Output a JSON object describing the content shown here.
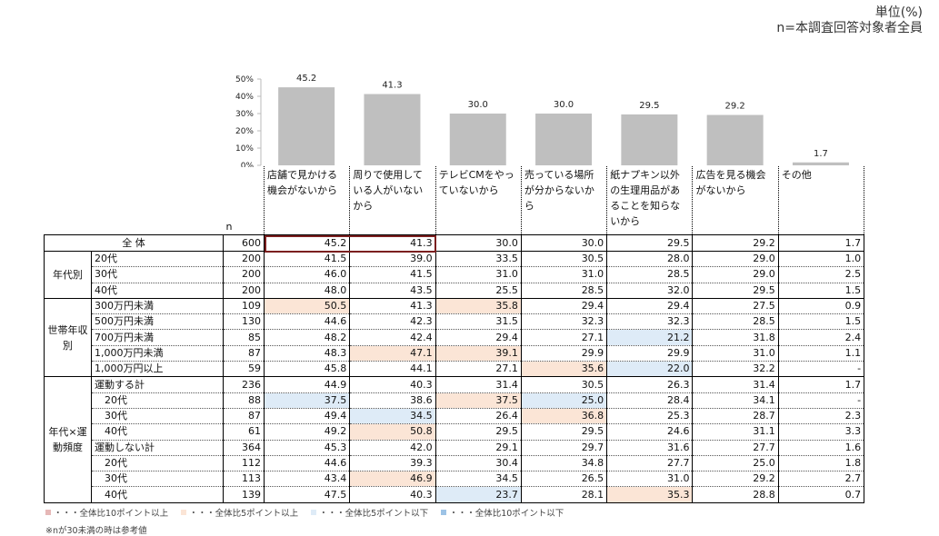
{
  "unit": "単位(%)",
  "n_note": "n=本調査回答対象者全員",
  "chart_data": {
    "type": "bar",
    "categories": [
      "店舗で見かける機会がないから",
      "周りで使用している人がいないから",
      "テレビCMをやっていないから",
      "売っている場所が分からないから",
      "紙ナプキン以外の生理用品があることを知らないから",
      "広告を見る機会がないから",
      "その他"
    ],
    "values": [
      45.2,
      41.3,
      30.0,
      30.0,
      29.5,
      29.2,
      1.7
    ],
    "value_labels": [
      "45.2",
      "41.3",
      "30.0",
      "30.0",
      "29.5",
      "29.2",
      "1.7"
    ],
    "color": "#bfbfbf",
    "ylim": [
      0,
      50
    ],
    "yticks": [
      {
        "value": 0,
        "label": "0%"
      },
      {
        "value": 10,
        "label": "10%"
      },
      {
        "value": 20,
        "label": "20%"
      },
      {
        "value": 30,
        "label": "30%"
      },
      {
        "value": 40,
        "label": "40%"
      },
      {
        "value": 50,
        "label": "50%"
      }
    ]
  },
  "table": {
    "n_header": "n",
    "total": {
      "label": "全 体",
      "n": "600",
      "values": [
        "45.2",
        "41.3",
        "30.0",
        "30.0",
        "29.5",
        "29.2",
        "1.7"
      ]
    },
    "groups": [
      {
        "label": "年代別",
        "rows": [
          {
            "label": "20代",
            "n": "200",
            "values": [
              "41.5",
              "39.0",
              "33.5",
              "30.5",
              "28.0",
              "29.0",
              "1.0"
            ]
          },
          {
            "label": "30代",
            "n": "200",
            "values": [
              "46.0",
              "41.5",
              "31.0",
              "31.0",
              "28.5",
              "29.0",
              "2.5"
            ]
          },
          {
            "label": "40代",
            "n": "200",
            "values": [
              "48.0",
              "43.5",
              "25.5",
              "28.5",
              "32.0",
              "29.5",
              "1.5"
            ]
          }
        ]
      },
      {
        "label": "世帯年収別",
        "rows": [
          {
            "label": "300万円未満",
            "n": "109",
            "values": [
              "50.5",
              "41.3",
              "35.8",
              "29.4",
              "29.4",
              "27.5",
              "0.9"
            ],
            "highlights": [
              [
                0,
                1
              ],
              [
                2,
                1
              ]
            ]
          },
          {
            "label": "500万円未満",
            "n": "130",
            "values": [
              "44.6",
              "42.3",
              "31.5",
              "32.3",
              "32.3",
              "28.5",
              "1.5"
            ]
          },
          {
            "label": "700万円未満",
            "n": "85",
            "values": [
              "48.2",
              "42.4",
              "29.4",
              "27.1",
              "21.2",
              "31.8",
              "2.4"
            ],
            "highlights": [
              [
                4,
                2
              ]
            ]
          },
          {
            "label": "1,000万円未満",
            "n": "87",
            "values": [
              "48.3",
              "47.1",
              "39.1",
              "29.9",
              "29.9",
              "31.0",
              "1.1"
            ],
            "highlights": [
              [
                1,
                1
              ],
              [
                2,
                1
              ]
            ]
          },
          {
            "label": "1,000万円以上",
            "n": "59",
            "values": [
              "45.8",
              "44.1",
              "27.1",
              "35.6",
              "22.0",
              "32.2",
              "-"
            ],
            "highlights": [
              [
                3,
                1
              ],
              [
                4,
                2
              ]
            ]
          }
        ]
      },
      {
        "label": "年代×運動頻度",
        "rows": [
          {
            "label": "運動する計",
            "n": "236",
            "values": [
              "44.9",
              "40.3",
              "31.4",
              "30.5",
              "26.3",
              "31.4",
              "1.7"
            ]
          },
          {
            "label": "　20代",
            "n": "88",
            "values": [
              "37.5",
              "38.6",
              "37.5",
              "25.0",
              "28.4",
              "34.1",
              "-"
            ],
            "highlights": [
              [
                0,
                2
              ],
              [
                2,
                1
              ],
              [
                3,
                2
              ]
            ]
          },
          {
            "label": "　30代",
            "n": "87",
            "values": [
              "49.4",
              "34.5",
              "26.4",
              "36.8",
              "25.3",
              "28.7",
              "2.3"
            ],
            "highlights": [
              [
                1,
                2
              ],
              [
                3,
                1
              ]
            ]
          },
          {
            "label": "　40代",
            "n": "61",
            "values": [
              "49.2",
              "50.8",
              "29.5",
              "29.5",
              "24.6",
              "31.1",
              "3.3"
            ],
            "highlights": [
              [
                1,
                1
              ]
            ]
          },
          {
            "label": "運動しない計",
            "n": "364",
            "values": [
              "45.3",
              "42.0",
              "29.1",
              "29.7",
              "31.6",
              "27.7",
              "1.6"
            ]
          },
          {
            "label": "　20代",
            "n": "112",
            "values": [
              "44.6",
              "39.3",
              "30.4",
              "34.8",
              "27.7",
              "25.0",
              "1.8"
            ]
          },
          {
            "label": "　30代",
            "n": "113",
            "values": [
              "43.4",
              "46.9",
              "34.5",
              "26.5",
              "31.0",
              "29.2",
              "2.7"
            ],
            "highlights": [
              [
                1,
                1
              ]
            ]
          },
          {
            "label": "　40代",
            "n": "139",
            "values": [
              "47.5",
              "40.3",
              "23.7",
              "28.1",
              "35.3",
              "28.8",
              "0.7"
            ],
            "highlights": [
              [
                2,
                2
              ],
              [
                4,
                1
              ]
            ]
          }
        ]
      }
    ]
  },
  "legend": {
    "items": [
      {
        "label": "・・・全体比10ポイント以上",
        "color": "#e6b8b7"
      },
      {
        "label": "・・・全体比5ポイント以上",
        "color": "#fbe5d6"
      },
      {
        "label": "・・・全体比5ポイント以下",
        "color": "#deebf7"
      },
      {
        "label": "・・・全体比10ポイント以下",
        "color": "#9dc3e6"
      }
    ]
  },
  "footnote": "※nが30未満の時は参考値"
}
